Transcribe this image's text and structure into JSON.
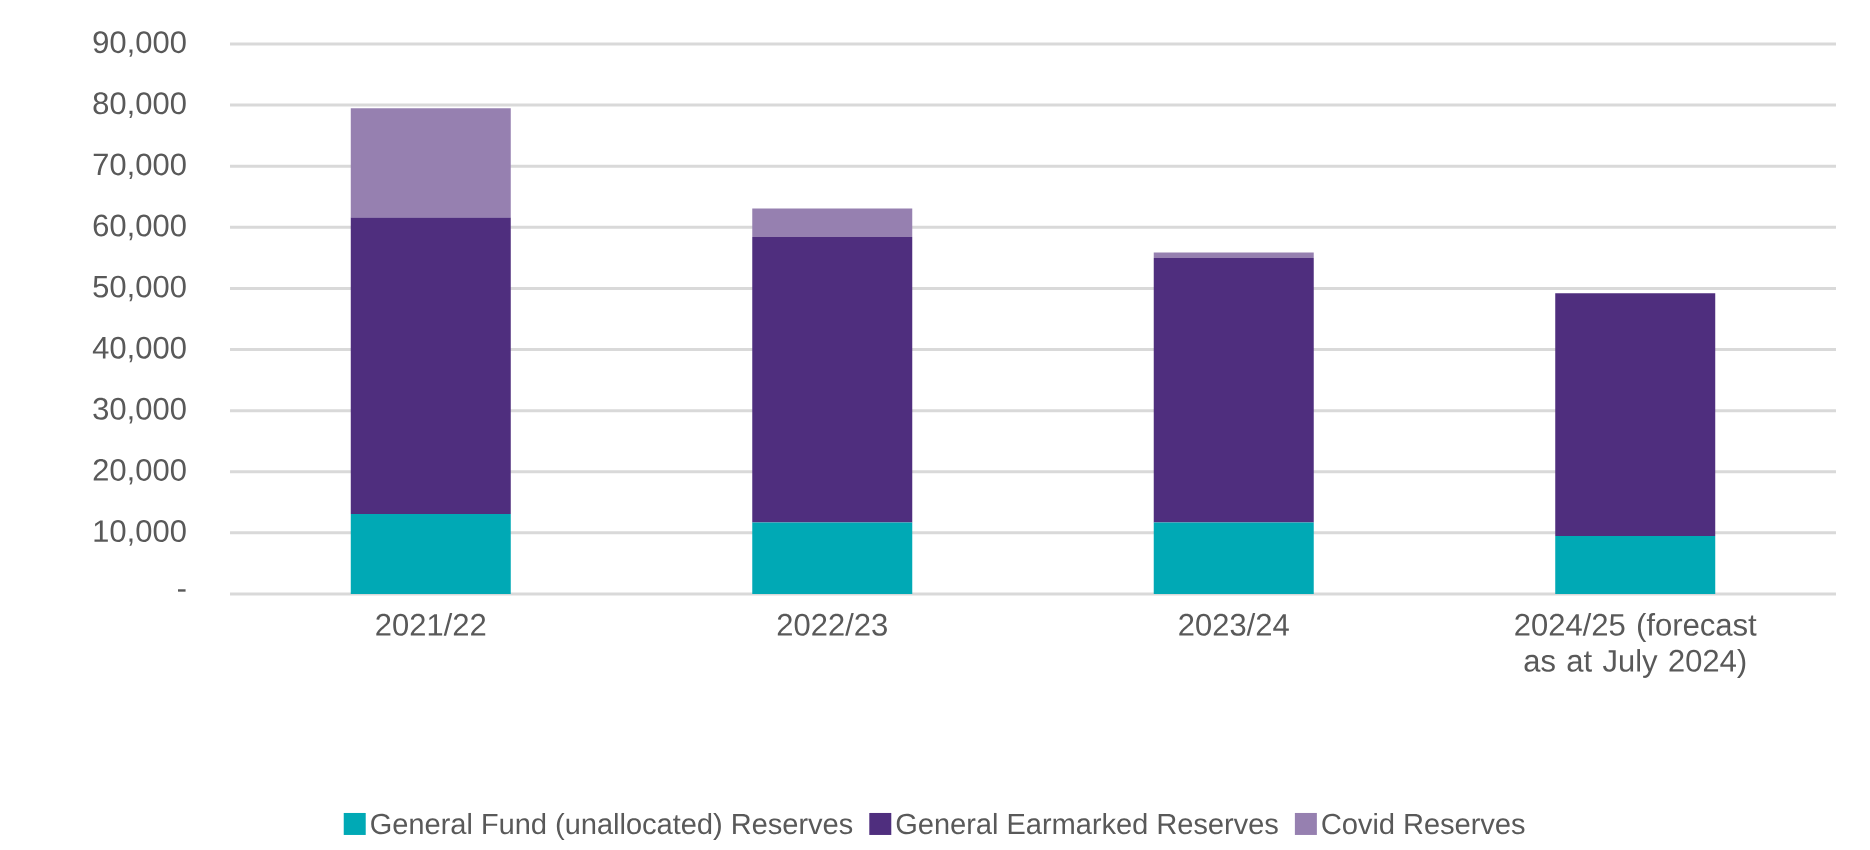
{
  "chart_data": {
    "type": "bar",
    "stacked": true,
    "grid": "y",
    "legend": "bottom",
    "categories": [
      "2021/22",
      "2022/23",
      "2023/24",
      "2024/25 (forecast as at July 2024)"
    ],
    "series": [
      {
        "name": "General Fund (unallocated) Reserves",
        "color": "#00a9b5",
        "values": [
          13100,
          11700,
          11700,
          9500
        ]
      },
      {
        "name": "General Earmarked Reserves",
        "color": "#4f2e7e",
        "values": [
          48500,
          46700,
          43300,
          39700
        ]
      },
      {
        "name": "Covid Reserves",
        "color": "#9680b0",
        "values": [
          17900,
          4700,
          900,
          0
        ]
      }
    ],
    "ylim": [
      0,
      90000
    ],
    "yticks": [
      {
        "value": 0,
        "label": "-"
      },
      {
        "value": 10000,
        "label": "10,000"
      },
      {
        "value": 20000,
        "label": "20,000"
      },
      {
        "value": 30000,
        "label": "30,000"
      },
      {
        "value": 40000,
        "label": "40,000"
      },
      {
        "value": 50000,
        "label": "50,000"
      },
      {
        "value": 60000,
        "label": "60,000"
      },
      {
        "value": 70000,
        "label": "70,000"
      },
      {
        "value": 80000,
        "label": "80,000"
      },
      {
        "value": 90000,
        "label": "90,000"
      }
    ]
  }
}
